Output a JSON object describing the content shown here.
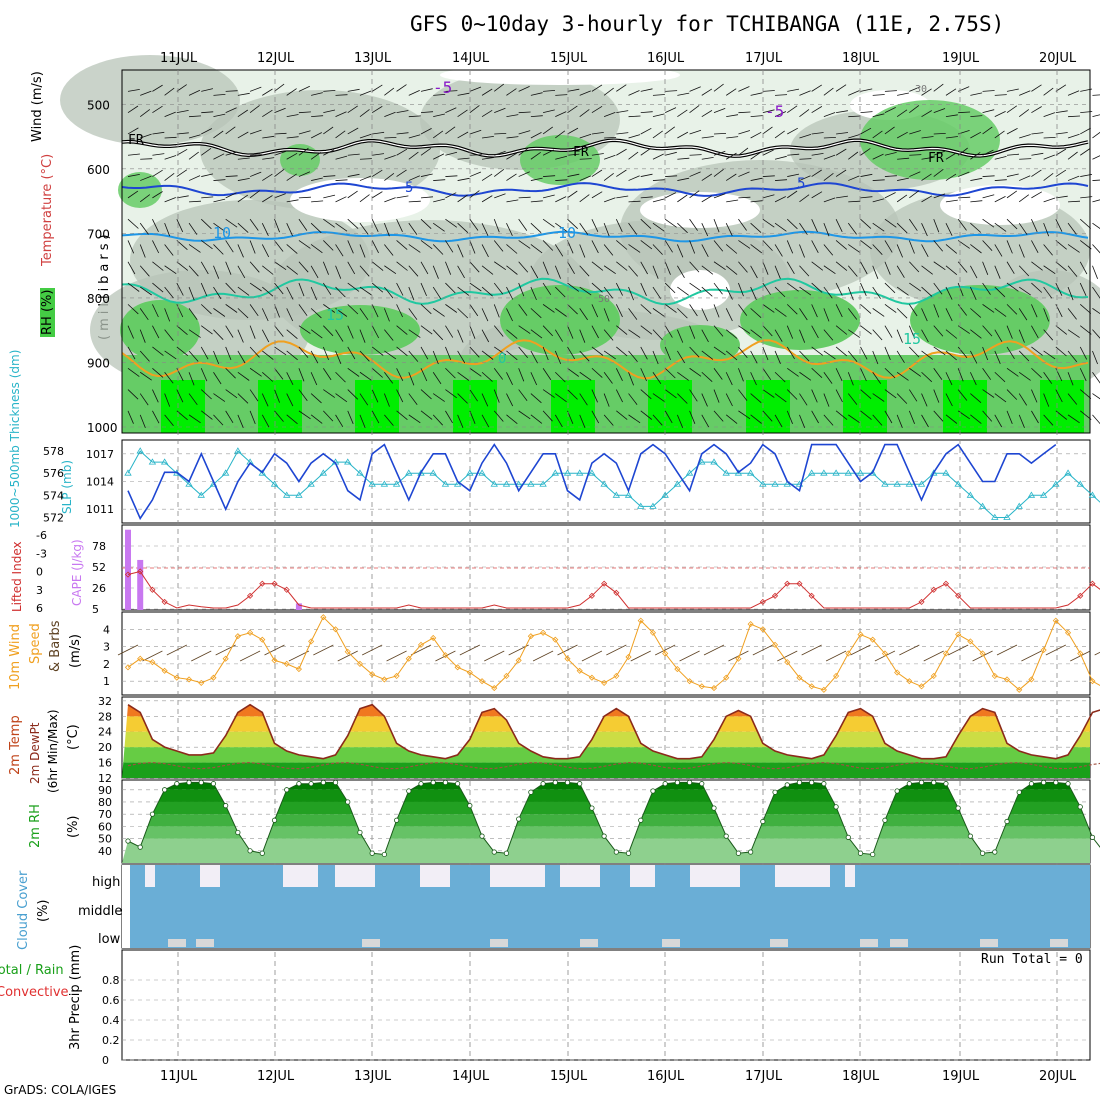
{
  "header": {
    "title": "GFS 0~10day 3-hourly for TCHIBANGA (11E, 2.75S)",
    "credit": "GrADS: COLA/IGES"
  },
  "days": [
    "11JUL",
    "12JUL",
    "13JUL",
    "14JUL",
    "15JUL",
    "16JUL",
    "17JUL",
    "18JUL",
    "19JUL",
    "20JUL"
  ],
  "colors": {
    "rh_light": "#e8f2e8",
    "rh_gray": "#b8c4b8",
    "rh_green": "#66cc66",
    "rh_bright": "#00ee00",
    "slp": "#1e46d2",
    "thickness": "#28b4c8",
    "cape": "#c878f0",
    "li": "#d03030",
    "wind10": "#f0a020",
    "temp": "#8b2a1a",
    "rh2m": "#1aa01a",
    "cloud": "#6aaed6",
    "cloud_clear": "#f2eef6"
  },
  "chart_data": [
    {
      "type": "heatmap",
      "id": "upper-air",
      "title": "Wind (m/s), Temperature (°C), RH (%)",
      "ylabel": "(millibars)",
      "ylim": [
        1000,
        450
      ],
      "yticks": [
        500,
        600,
        700,
        800,
        900,
        1000
      ],
      "labels": {
        "wind": "Wind (m/s)",
        "temperature": "Temperature (°C)",
        "rh": "RH (%)",
        "pressure": "(millibars)"
      },
      "isotherm_labels": [
        "-5",
        "-5",
        "FR",
        "FR",
        "FR",
        "5",
        "5",
        "10",
        "10",
        "15",
        "15",
        "0",
        "30",
        "50"
      ]
    },
    {
      "type": "line",
      "id": "slp-thickness",
      "title": "SLP (mb) / 1000-500mb Thickness (dm)",
      "labels": {
        "slp": "SLP (mb)",
        "thickness": "1000~500mb Thickness (dm)"
      },
      "yticks_left": [
        "578",
        "576",
        "574",
        "572"
      ],
      "yticks_right": [
        "1017",
        "1014",
        "1011"
      ],
      "series": [
        {
          "name": "SLP (mb)",
          "ylim": [
            1009.5,
            1018.5
          ],
          "values": [
            1013,
            1010,
            1012,
            1015,
            1015,
            1014,
            1017,
            1014,
            1011,
            1014,
            1016,
            1015,
            1017,
            1016,
            1014,
            1016,
            1017,
            1016,
            1013,
            1012,
            1017,
            1018,
            1015,
            1012,
            1015,
            1017,
            1017,
            1014,
            1013,
            1016,
            1018,
            1016,
            1013,
            1015,
            1017,
            1017,
            1013,
            1012,
            1016,
            1017,
            1016,
            1013,
            1017,
            1018,
            1017,
            1015,
            1013,
            1017,
            1018,
            1017,
            1015,
            1016,
            1018,
            1017,
            1014,
            1013,
            1018,
            1018,
            1018,
            1016,
            1014,
            1015,
            1018,
            1018,
            1015,
            1012,
            1015,
            1017,
            1018,
            1016,
            1014,
            1014,
            1017,
            1017,
            1016,
            1017,
            1018
          ]
        },
        {
          "name": "1000-500mb Thickness (dm)",
          "ylim": [
            571.5,
            579
          ],
          "values": [
            576,
            578,
            577,
            577,
            576,
            575,
            574,
            575,
            576,
            578,
            577,
            576,
            575,
            574,
            574,
            575,
            576,
            577,
            577,
            576,
            575,
            575,
            575,
            576,
            576,
            576,
            575,
            575,
            576,
            576,
            575,
            575,
            575,
            575,
            575,
            576,
            576,
            576,
            576,
            575,
            574,
            574,
            573,
            573,
            574,
            575,
            576,
            577,
            577,
            576,
            576,
            576,
            575,
            575,
            575,
            575,
            576,
            576,
            576,
            576,
            576,
            576,
            575,
            575,
            575,
            575,
            576,
            576,
            575,
            574,
            573,
            572,
            572,
            573,
            574,
            574,
            575,
            576,
            575,
            574,
            573,
            573,
            573
          ]
        }
      ]
    },
    {
      "type": "bar",
      "id": "cape-li",
      "title": "CAPE (J/kg) / Lifted Index",
      "labels": {
        "cape": "CAPE (J/kg)",
        "li": "Lifted Index"
      },
      "yticks_left": [
        "-6",
        "-3",
        "0",
        "3",
        "6"
      ],
      "yticks_right": [
        "78",
        "52",
        "26",
        "5"
      ],
      "cape_ylim": [
        5,
        95
      ],
      "cape_values": [
        90,
        58,
        0,
        0,
        0,
        0,
        0,
        0,
        0,
        0,
        0,
        0,
        0,
        0,
        12
      ],
      "li_ylim": [
        6,
        -8
      ],
      "li_values": [
        0.5,
        0,
        3,
        5,
        6,
        5.5,
        5.8,
        6,
        6,
        5.5,
        4,
        2,
        2,
        3,
        5.5,
        6,
        6,
        6,
        6,
        6,
        6,
        6,
        6,
        5.5,
        6,
        6,
        6,
        6,
        6,
        6,
        5.5,
        6,
        6,
        6,
        6,
        6,
        6,
        5.5,
        4,
        2,
        3.5,
        6,
        6,
        6,
        6,
        6,
        6,
        6,
        6,
        6,
        6,
        6,
        5,
        4,
        2,
        2,
        4,
        6,
        6,
        6,
        6,
        6,
        6,
        6,
        6,
        5,
        3,
        2,
        4,
        6,
        6,
        6,
        6,
        6,
        6,
        6,
        6,
        5.5,
        4,
        2,
        3.5,
        6,
        6
      ]
    },
    {
      "type": "line",
      "id": "wind10m",
      "title": "10m Wind Speed & Barbs (m/s)",
      "labels": {
        "wind10": "10m Wind",
        "speed": "Speed",
        "barbs": "& Barbs",
        "units": "(m/s)"
      },
      "ylim": [
        0.2,
        5.0
      ],
      "yticks": [
        "4",
        "3",
        "2",
        "1"
      ],
      "values": [
        1.8,
        2.3,
        2.1,
        1.6,
        1.2,
        1.1,
        0.9,
        1.2,
        2.3,
        3.6,
        3.8,
        3.4,
        2.2,
        2.0,
        1.7,
        3.3,
        4.7,
        4.0,
        2.7,
        2.0,
        1.4,
        1.1,
        1.3,
        2.3,
        3.1,
        3.5,
        2.5,
        1.8,
        1.5,
        1.0,
        0.6,
        1.3,
        2.2,
        3.6,
        3.8,
        3.4,
        2.3,
        1.6,
        1.2,
        0.9,
        1.3,
        2.4,
        4.5,
        3.8,
        2.6,
        1.7,
        1.0,
        0.7,
        0.6,
        1.2,
        2.3,
        4.3,
        4.0,
        3.1,
        2.1,
        1.2,
        0.7,
        0.5,
        1.3,
        2.6,
        3.7,
        3.4,
        2.6,
        1.5,
        1.0,
        0.7,
        1.3,
        2.6,
        3.7,
        3.3,
        2.6,
        1.3,
        1.1,
        0.5,
        1.1,
        2.8,
        4.5,
        3.8,
        2.6,
        1.0,
        0.6,
        0.8
      ]
    },
    {
      "type": "area",
      "id": "temp2m",
      "title": "2m Temp / 2m DewPt (6hr Min/Max) (°C)",
      "labels": {
        "temp": "2m Temp",
        "dewpt": "2m DewPt",
        "minmax": "(6hr Min/Max)",
        "units": "(°C)"
      },
      "ylim": [
        12,
        33
      ],
      "yticks": [
        "32",
        "28",
        "24",
        "20",
        "16",
        "12"
      ],
      "temp_values": [
        31,
        29,
        22,
        20,
        19,
        18,
        18,
        18.5,
        23,
        29,
        31,
        29,
        21,
        19,
        18,
        17.5,
        17,
        18,
        23,
        30,
        31,
        28,
        21,
        19,
        18,
        17.5,
        17,
        18,
        22,
        29,
        30,
        27,
        21,
        19,
        17.5,
        17,
        17,
        17.5,
        22,
        28,
        30,
        28,
        21,
        19,
        18,
        17,
        17,
        17.5,
        22,
        28,
        29.5,
        28,
        21,
        19,
        18,
        17.5,
        17,
        18,
        23,
        29,
        30,
        28,
        21,
        19,
        18,
        17,
        17,
        17.5,
        23,
        28,
        30,
        29,
        21,
        19,
        18,
        17.5,
        17,
        18,
        23,
        29,
        30,
        28
      ]
    },
    {
      "type": "area",
      "id": "rh2m",
      "title": "2m RH (%)",
      "labels": {
        "rh": "2m RH",
        "units": "(%)"
      },
      "ylim": [
        30,
        98
      ],
      "yticks": [
        "90",
        "80",
        "70",
        "60",
        "50",
        "40"
      ],
      "values": [
        48,
        43,
        70,
        90,
        95,
        96,
        96,
        95,
        77,
        55,
        40,
        38,
        65,
        90,
        95,
        95,
        96,
        96,
        80,
        55,
        38,
        37,
        65,
        89,
        95,
        96,
        96,
        95,
        77,
        52,
        39,
        38,
        66,
        88,
        95,
        96,
        96,
        95,
        75,
        52,
        39,
        38,
        65,
        89,
        95,
        96,
        96,
        95,
        75,
        52,
        38,
        39,
        64,
        88,
        94,
        96,
        96,
        95,
        76,
        51,
        38,
        37,
        65,
        89,
        95,
        96,
        96,
        95,
        75,
        52,
        38,
        39,
        64,
        88,
        95,
        96,
        96,
        95,
        76,
        51,
        38,
        37,
        65
      ]
    },
    {
      "type": "area",
      "id": "cloud",
      "title": "Cloud Cover (%)",
      "labels": {
        "cloud": "Cloud Cover",
        "units": "(%)",
        "high": "high",
        "middle": "middle",
        "low": "low"
      }
    },
    {
      "type": "bar",
      "id": "precip",
      "title": "3hr Precip (mm)",
      "labels": {
        "totalrain": "Total / Rain",
        "convective": "Convective",
        "precip": "3hr Precip (mm)",
        "runtotal": "Run Total = 0"
      },
      "ylim": [
        0,
        1
      ],
      "yticks": [
        "0.8",
        "0.6",
        "0.4",
        "0.2",
        "0"
      ],
      "values": []
    }
  ]
}
